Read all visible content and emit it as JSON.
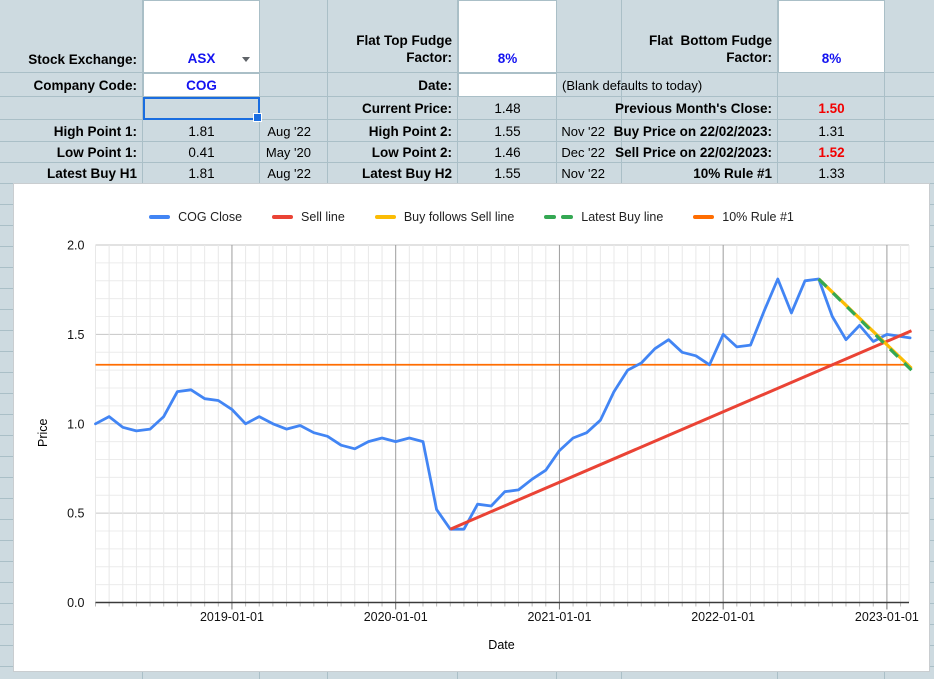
{
  "sheet": {
    "cells": [
      {
        "name": "stock-exchange-label",
        "r": 0,
        "c": 0,
        "text": "Stock Exchange:",
        "kind": "lbl vb"
      },
      {
        "name": "stock-exchange-value",
        "r": 0,
        "c": 1,
        "text": "ASX",
        "kind": "inputw bluetxt vb",
        "rspan": 1
      },
      {
        "name": "flat-top-fudge-label",
        "r": 0,
        "c": 3,
        "text": "Flat Top Fudge\nFactor:",
        "kind": "lbl vb",
        "multiline": true
      },
      {
        "name": "flat-top-fudge-value",
        "r": 0,
        "c": 4,
        "text": "8%",
        "kind": "inputw bluetxt vb"
      },
      {
        "name": "flat-bottom-fudge-label",
        "r": 0,
        "c": 6,
        "text": "Flat  Bottom Fudge\nFactor:",
        "kind": "lbl vb",
        "multiline": true
      },
      {
        "name": "flat-bottom-fudge-value",
        "r": 0,
        "c": 7,
        "text": "8%",
        "kind": "inputw bluetxt vb"
      },
      {
        "name": "company-code-label",
        "r": 1,
        "c": 0,
        "text": "Company Code:",
        "kind": "lbl"
      },
      {
        "name": "company-code-value",
        "r": 1,
        "c": 1,
        "text": "COG",
        "kind": "inputw bluetxt"
      },
      {
        "name": "date-label",
        "r": 1,
        "c": 3,
        "text": "Date:",
        "kind": "lbl"
      },
      {
        "name": "date-input",
        "r": 1,
        "c": 4,
        "text": "",
        "kind": "inputw"
      },
      {
        "name": "date-note",
        "r": 1,
        "c": 5,
        "text": "(Blank defaults to today)",
        "kind": "note"
      },
      {
        "name": "current-price-label",
        "r": 2,
        "c": 3,
        "text": "Current Price:",
        "kind": "lbl"
      },
      {
        "name": "current-price-value",
        "r": 2,
        "c": 4,
        "text": "1.48",
        "kind": "val"
      },
      {
        "name": "prev-month-close-label",
        "r": 2,
        "c": 6,
        "text": "Previous Month's Close:",
        "kind": "lbl"
      },
      {
        "name": "prev-month-close-value",
        "r": 2,
        "c": 7,
        "text": "1.50",
        "kind": "val redtxt"
      },
      {
        "name": "high-point-1-label",
        "r": 3,
        "c": 0,
        "text": "High Point 1:",
        "kind": "lbl"
      },
      {
        "name": "high-point-1-value",
        "r": 3,
        "c": 1,
        "text": "1.81",
        "kind": "val"
      },
      {
        "name": "high-point-1-date",
        "r": 3,
        "c": 2,
        "text": "Aug '22",
        "kind": "date"
      },
      {
        "name": "high-point-2-label",
        "r": 3,
        "c": 3,
        "text": "High Point 2:",
        "kind": "lbl"
      },
      {
        "name": "high-point-2-value",
        "r": 3,
        "c": 4,
        "text": "1.55",
        "kind": "val"
      },
      {
        "name": "high-point-2-date",
        "r": 3,
        "c": 5,
        "text": "Nov '22",
        "kind": "date"
      },
      {
        "name": "buy-price-label",
        "r": 3,
        "c": 6,
        "text": "Buy Price on 22/02/2023:",
        "kind": "lbl"
      },
      {
        "name": "buy-price-value",
        "r": 3,
        "c": 7,
        "text": "1.31",
        "kind": "val"
      },
      {
        "name": "low-point-1-label",
        "r": 4,
        "c": 0,
        "text": "Low Point 1:",
        "kind": "lbl"
      },
      {
        "name": "low-point-1-value",
        "r": 4,
        "c": 1,
        "text": "0.41",
        "kind": "val"
      },
      {
        "name": "low-point-1-date",
        "r": 4,
        "c": 2,
        "text": "May '20",
        "kind": "date"
      },
      {
        "name": "low-point-2-label",
        "r": 4,
        "c": 3,
        "text": "Low Point 2:",
        "kind": "lbl"
      },
      {
        "name": "low-point-2-value",
        "r": 4,
        "c": 4,
        "text": "1.46",
        "kind": "val"
      },
      {
        "name": "low-point-2-date",
        "r": 4,
        "c": 5,
        "text": "Dec '22",
        "kind": "date"
      },
      {
        "name": "sell-price-label",
        "r": 4,
        "c": 6,
        "text": "Sell Price on 22/02/2023:",
        "kind": "lbl"
      },
      {
        "name": "sell-price-value",
        "r": 4,
        "c": 7,
        "text": "1.52",
        "kind": "val redtxt"
      },
      {
        "name": "latest-buy-h1-label",
        "r": 5,
        "c": 0,
        "text": "Latest Buy H1",
        "kind": "lbl"
      },
      {
        "name": "latest-buy-h1-value",
        "r": 5,
        "c": 1,
        "text": "1.81",
        "kind": "val"
      },
      {
        "name": "latest-buy-h1-date",
        "r": 5,
        "c": 2,
        "text": "Aug '22",
        "kind": "date"
      },
      {
        "name": "latest-buy-h2-label",
        "r": 5,
        "c": 3,
        "text": "Latest Buy H2",
        "kind": "lbl"
      },
      {
        "name": "latest-buy-h2-value",
        "r": 5,
        "c": 4,
        "text": "1.55",
        "kind": "val"
      },
      {
        "name": "latest-buy-h2-date",
        "r": 5,
        "c": 5,
        "text": "Nov '22",
        "kind": "date"
      },
      {
        "name": "rule-10-label",
        "r": 5,
        "c": 6,
        "text": "10% Rule #1",
        "kind": "lbl"
      },
      {
        "name": "rule-10-value",
        "r": 5,
        "c": 7,
        "text": "1.33",
        "kind": "val"
      }
    ],
    "selected_cell": {
      "r": 2,
      "c": 1
    },
    "colors": {
      "background": "#cddae0",
      "gridline": "#aabfc7",
      "cell_white": "#ffffff",
      "blue_text": "#1312f0",
      "red_text": "#f20000",
      "selection": "#1a6de0"
    }
  },
  "chart": {
    "xlabel": "Date",
    "ylabel": "Price",
    "legend": [
      {
        "label": "COG Close",
        "color": "#4285f4",
        "dashed": false
      },
      {
        "label": "Sell line",
        "color": "#ea4335",
        "dashed": false
      },
      {
        "label": "Buy follows Sell line",
        "color": "#fbbc04",
        "dashed": false
      },
      {
        "label": "Latest Buy line",
        "color": "#34a853",
        "dashed": true
      },
      {
        "label": "10% Rule #1",
        "color": "#ff6d01",
        "dashed": false
      }
    ]
  },
  "chart_data": {
    "type": "line",
    "xlabel": "Date",
    "ylabel": "Price",
    "ylim": [
      0.0,
      2.0
    ],
    "yticks": [
      "0.0",
      "0.5",
      "1.0",
      "1.5",
      "2.0"
    ],
    "xticks": [
      "2019-01-01",
      "2020-01-01",
      "2021-01-01",
      "2022-01-01",
      "2023-01-01"
    ],
    "grid": true,
    "legend_position": "top",
    "series": [
      {
        "name": "COG Close",
        "color": "#4285f4",
        "style": "solid",
        "points": [
          [
            "2018-03",
            1.0
          ],
          [
            "2018-04",
            1.04
          ],
          [
            "2018-05",
            0.98
          ],
          [
            "2018-06",
            0.96
          ],
          [
            "2018-07",
            0.97
          ],
          [
            "2018-08",
            1.04
          ],
          [
            "2018-09",
            1.18
          ],
          [
            "2018-10",
            1.19
          ],
          [
            "2018-11",
            1.14
          ],
          [
            "2018-12",
            1.13
          ],
          [
            "2019-01",
            1.08
          ],
          [
            "2019-02",
            1.0
          ],
          [
            "2019-03",
            1.04
          ],
          [
            "2019-04",
            1.0
          ],
          [
            "2019-05",
            0.97
          ],
          [
            "2019-06",
            0.99
          ],
          [
            "2019-07",
            0.95
          ],
          [
            "2019-08",
            0.93
          ],
          [
            "2019-09",
            0.88
          ],
          [
            "2019-10",
            0.86
          ],
          [
            "2019-11",
            0.9
          ],
          [
            "2019-12",
            0.92
          ],
          [
            "2020-01",
            0.9
          ],
          [
            "2020-02",
            0.92
          ],
          [
            "2020-03",
            0.9
          ],
          [
            "2020-04",
            0.52
          ],
          [
            "2020-05",
            0.41
          ],
          [
            "2020-06",
            0.41
          ],
          [
            "2020-07",
            0.55
          ],
          [
            "2020-08",
            0.54
          ],
          [
            "2020-09",
            0.62
          ],
          [
            "2020-10",
            0.63
          ],
          [
            "2020-11",
            0.69
          ],
          [
            "2020-12",
            0.74
          ],
          [
            "2021-01",
            0.85
          ],
          [
            "2021-02",
            0.92
          ],
          [
            "2021-03",
            0.95
          ],
          [
            "2021-04",
            1.02
          ],
          [
            "2021-05",
            1.18
          ],
          [
            "2021-06",
            1.3
          ],
          [
            "2021-07",
            1.34
          ],
          [
            "2021-08",
            1.42
          ],
          [
            "2021-09",
            1.47
          ],
          [
            "2021-10",
            1.4
          ],
          [
            "2021-11",
            1.38
          ],
          [
            "2021-12",
            1.33
          ],
          [
            "2022-01",
            1.5
          ],
          [
            "2022-02",
            1.43
          ],
          [
            "2022-03",
            1.44
          ],
          [
            "2022-04",
            1.63
          ],
          [
            "2022-05",
            1.81
          ],
          [
            "2022-06",
            1.62
          ],
          [
            "2022-07",
            1.8
          ],
          [
            "2022-08",
            1.81
          ],
          [
            "2022-09",
            1.6
          ],
          [
            "2022-10",
            1.47
          ],
          [
            "2022-11",
            1.55
          ],
          [
            "2022-12",
            1.46
          ],
          [
            "2023-01",
            1.5
          ]
        ],
        "current_point": [
          "2023-02-22",
          1.48
        ]
      },
      {
        "name": "Sell line",
        "color": "#ea4335",
        "style": "solid",
        "segment": [
          [
            "2020-05",
            0.41
          ],
          [
            "2023-02-25",
            1.52
          ]
        ]
      },
      {
        "name": "Buy follows Sell line",
        "color": "#fbbc04",
        "style": "solid",
        "segment": [
          [
            "2022-08",
            1.81
          ],
          [
            "2023-02-25",
            1.31
          ]
        ]
      },
      {
        "name": "Latest Buy line",
        "color": "#34a853",
        "style": "dashed",
        "segment": [
          [
            "2022-08",
            1.81
          ],
          [
            "2023-02-25",
            1.3
          ]
        ]
      },
      {
        "name": "10% Rule #1",
        "color": "#ff6d01",
        "style": "solid",
        "hline": 1.33
      }
    ]
  }
}
